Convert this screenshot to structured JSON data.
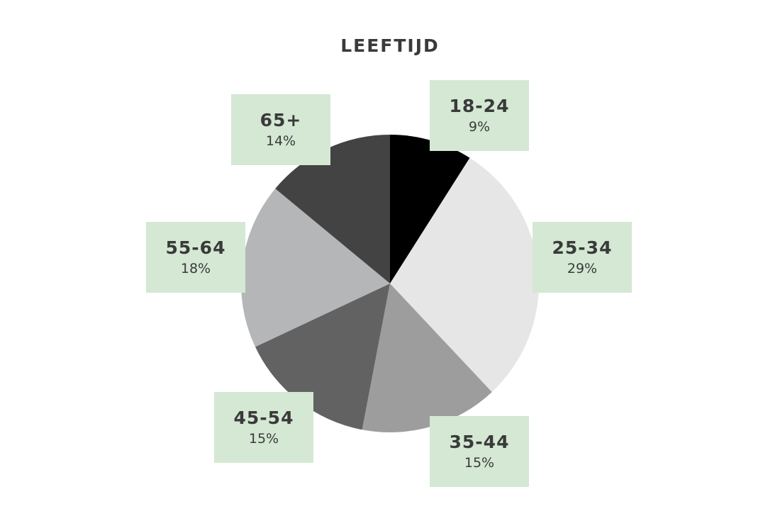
{
  "chart_data": {
    "type": "pie",
    "title": "LEEFTIJD",
    "categories": [
      "18-24",
      "25-34",
      "35-44",
      "45-54",
      "55-64",
      "65+"
    ],
    "values": [
      9,
      29,
      15,
      15,
      18,
      14
    ],
    "value_labels": [
      "9%",
      "29%",
      "15%",
      "15%",
      "18%",
      "14%"
    ],
    "colors": [
      "#000000",
      "#e6e6e6",
      "#9d9d9d",
      "#626262",
      "#b5b6b8",
      "#434343"
    ],
    "label_box_color": "#d4e8d4",
    "legend": "none"
  }
}
